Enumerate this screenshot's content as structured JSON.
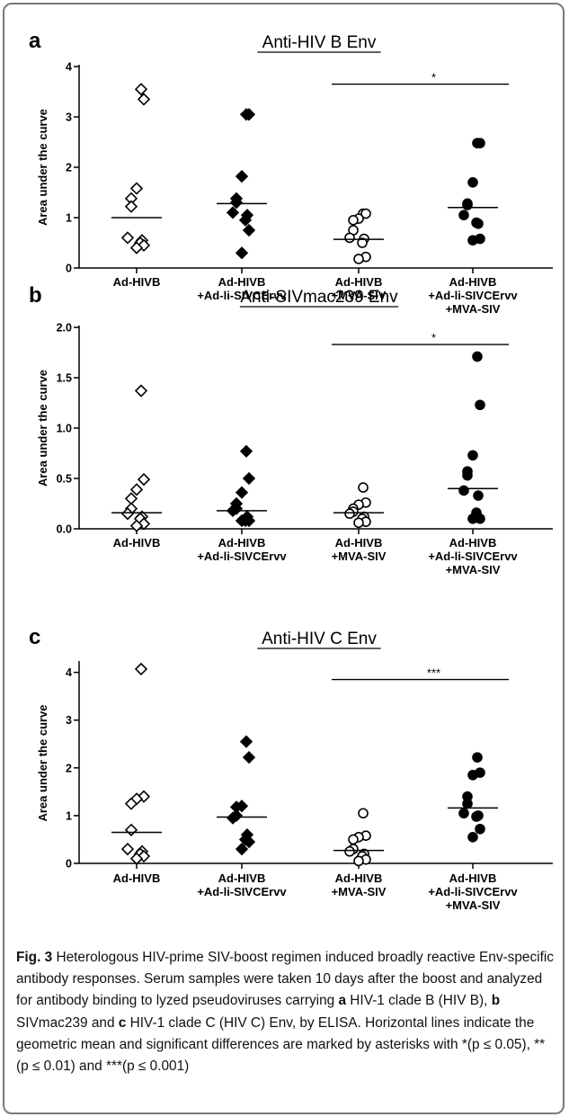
{
  "categories": [
    "Ad-HIVB",
    "Ad-HIVB\n+Ad-li-SIVCErvv",
    "Ad-HIVB\n+MVA-SIV",
    "Ad-HIVB\n+Ad-li-SIVCErvv\n+MVA-SIV"
  ],
  "ylabel": "Area under the curve",
  "chart_data": [
    {
      "panel": "a",
      "type": "scatter",
      "title": "Anti-HIV B Env",
      "ylabel": "Area under the curve",
      "ylim": [
        0,
        4
      ],
      "yticks": [
        "0",
        "1",
        "2",
        "3",
        "4"
      ],
      "series": [
        {
          "category": "Ad-HIVB",
          "marker": "open-diamond",
          "values": [
            3.55,
            3.35,
            1.58,
            1.38,
            1.22,
            0.6,
            0.55,
            0.5,
            0.45,
            0.4
          ],
          "geometric_mean": 1.0
        },
        {
          "category": "Ad-HIVB\n+Ad-li-SIVCErvv",
          "marker": "filled-diamond",
          "values": [
            3.05,
            3.05,
            1.82,
            1.38,
            1.3,
            1.1,
            1.05,
            0.95,
            0.75,
            0.3
          ],
          "geometric_mean": 1.28
        },
        {
          "category": "Ad-HIVB\n+MVA-SIV",
          "marker": "open-circle",
          "values": [
            1.08,
            1.08,
            0.98,
            0.95,
            0.75,
            0.6,
            0.58,
            0.5,
            0.22,
            0.18
          ],
          "geometric_mean": 0.57
        },
        {
          "category": "Ad-HIVB\n+Ad-li-SIVCErvv\n+MVA-SIV",
          "marker": "filled-circle",
          "values": [
            2.48,
            2.48,
            1.7,
            1.28,
            1.25,
            1.05,
            0.88,
            0.9,
            0.58,
            0.55
          ],
          "geometric_mean": 1.2
        }
      ],
      "significance": {
        "from": 2,
        "to": 3,
        "label": "*",
        "y": 3.65
      }
    },
    {
      "panel": "b",
      "type": "scatter",
      "title": "Anti-SIVmac239 Env",
      "ylabel": "Area under the curve",
      "ylim": [
        0,
        2.0
      ],
      "yticks": [
        "0.0",
        "0.5",
        "1.0",
        "1.5",
        "2.0"
      ],
      "series": [
        {
          "category": "Ad-HIVB",
          "marker": "open-diamond",
          "values": [
            1.37,
            0.49,
            0.39,
            0.3,
            0.2,
            0.15,
            0.12,
            0.1,
            0.05,
            0.03
          ],
          "geometric_mean": 0.16
        },
        {
          "category": "Ad-HIVB\n+Ad-li-SIVCErvv",
          "marker": "filled-diamond",
          "values": [
            0.77,
            0.5,
            0.36,
            0.25,
            0.2,
            0.18,
            0.12,
            0.08,
            0.08,
            0.08
          ],
          "geometric_mean": 0.18
        },
        {
          "category": "Ad-HIVB\n+MVA-SIV",
          "marker": "open-circle",
          "values": [
            0.41,
            0.26,
            0.24,
            0.2,
            0.17,
            0.15,
            0.12,
            0.1,
            0.07,
            0.06
          ],
          "geometric_mean": 0.16
        },
        {
          "category": "Ad-HIVB\n+Ad-li-SIVCErvv\n+MVA-SIV",
          "marker": "filled-circle",
          "values": [
            1.71,
            1.23,
            0.73,
            0.57,
            0.53,
            0.38,
            0.33,
            0.16,
            0.1,
            0.1
          ],
          "geometric_mean": 0.4
        }
      ],
      "significance": {
        "from": 2,
        "to": 3,
        "label": "*",
        "y": 1.83
      }
    },
    {
      "panel": "c",
      "type": "scatter",
      "title": "Anti-HIV C Env",
      "ylabel": "Area under the curve",
      "ylim": [
        0,
        4.2
      ],
      "yticks": [
        "0",
        "1",
        "2",
        "3",
        "4"
      ],
      "series": [
        {
          "category": "Ad-HIVB",
          "marker": "open-diamond",
          "values": [
            4.07,
            1.4,
            1.35,
            1.25,
            0.7,
            0.3,
            0.25,
            0.2,
            0.15,
            0.1
          ],
          "geometric_mean": 0.65
        },
        {
          "category": "Ad-HIVB\n+Ad-li-SIVCErvv",
          "marker": "filled-diamond",
          "values": [
            2.55,
            2.22,
            1.2,
            1.18,
            1.0,
            0.95,
            0.6,
            0.5,
            0.45,
            0.3
          ],
          "geometric_mean": 0.97
        },
        {
          "category": "Ad-HIVB\n+MVA-SIV",
          "marker": "open-circle",
          "values": [
            1.05,
            0.58,
            0.55,
            0.5,
            0.3,
            0.25,
            0.2,
            0.15,
            0.08,
            0.05
          ],
          "geometric_mean": 0.27
        },
        {
          "category": "Ad-HIVB\n+Ad-li-SIVCErvv\n+MVA-SIV",
          "marker": "filled-circle",
          "values": [
            2.22,
            1.9,
            1.85,
            1.4,
            1.25,
            1.05,
            1.0,
            0.98,
            0.72,
            0.55
          ],
          "geometric_mean": 1.16
        }
      ],
      "significance": {
        "from": 2,
        "to": 3,
        "label": "***",
        "y": 3.85
      }
    }
  ],
  "caption": {
    "label": "Fig. 3",
    "text_1": " Heterologous HIV-prime SIV-boost regimen induced broadly reactive Env-specific antibody responses. Serum samples were taken 10 days after the boost and analyzed for antibody binding to lyzed pseudoviruses carrying ",
    "a_bold": "a",
    "text_2": " HIV-1 clade B (HIV B), ",
    "b_bold": "b",
    "text_3": " SIVmac239 and ",
    "c_bold": "c",
    "text_4": " HIV-1 clade C (HIV C) Env, by ELISA. Horizontal lines indicate the geometric mean and significant differences are marked by asterisks with *(p ≤ 0.05), **(p ≤ 0.01) and ***(p ≤ 0.001)"
  }
}
